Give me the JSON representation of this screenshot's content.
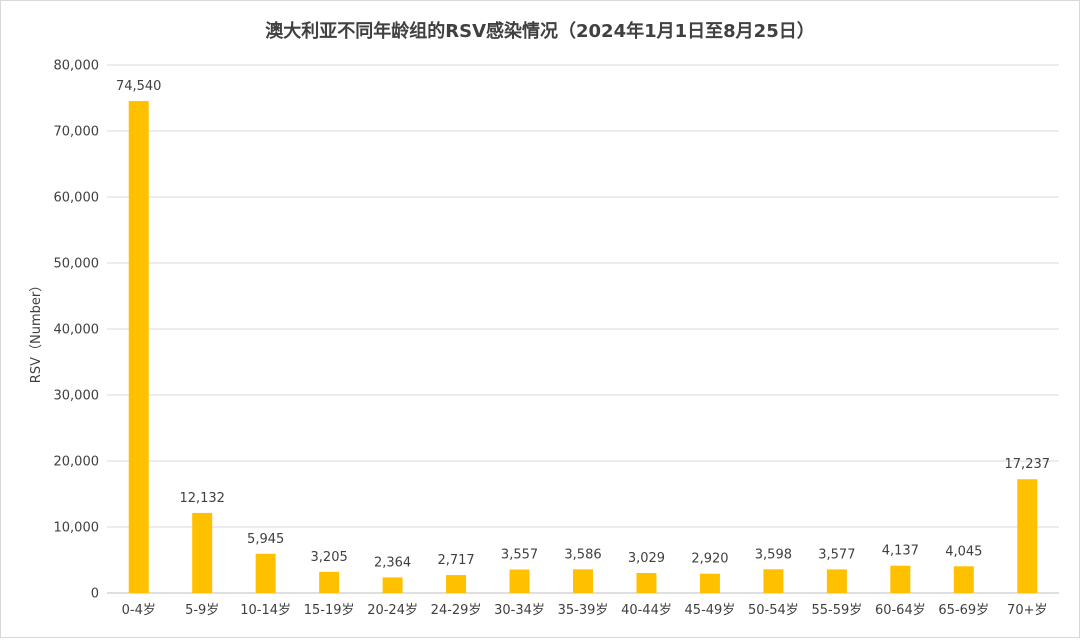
{
  "chart_data": {
    "type": "bar",
    "title": "澳大利亚不同年龄组的RSV感染情况（2024年1月1日至8月25日）",
    "ylabel": "RSV（Number）",
    "xlabel": "",
    "ylim": [
      0,
      80000
    ],
    "yticks": [
      0,
      10000,
      20000,
      30000,
      40000,
      50000,
      60000,
      70000,
      80000
    ],
    "ytick_labels": [
      "0",
      "10,000",
      "20,000",
      "30,000",
      "40,000",
      "50,000",
      "60,000",
      "70,000",
      "80,000"
    ],
    "grid": true,
    "legend": "none",
    "bar_color": "#FFC000",
    "categories": [
      "0-4岁",
      "5-9岁",
      "10-14岁",
      "15-19岁",
      "20-24岁",
      "24-29岁",
      "30-34岁",
      "35-39岁",
      "40-44岁",
      "45-49岁",
      "50-54岁",
      "55-59岁",
      "60-64岁",
      "65-69岁",
      "70+岁"
    ],
    "values": [
      74540,
      12132,
      5945,
      3205,
      2364,
      2717,
      3557,
      3586,
      3029,
      2920,
      3598,
      3577,
      4137,
      4045,
      17237
    ],
    "value_labels": [
      "74,540",
      "12,132",
      "5,945",
      "3,205",
      "2,364",
      "2,717",
      "3,557",
      "3,586",
      "3,029",
      "2,920",
      "3,598",
      "3,577",
      "4,137",
      "4,045",
      "17,237"
    ]
  }
}
